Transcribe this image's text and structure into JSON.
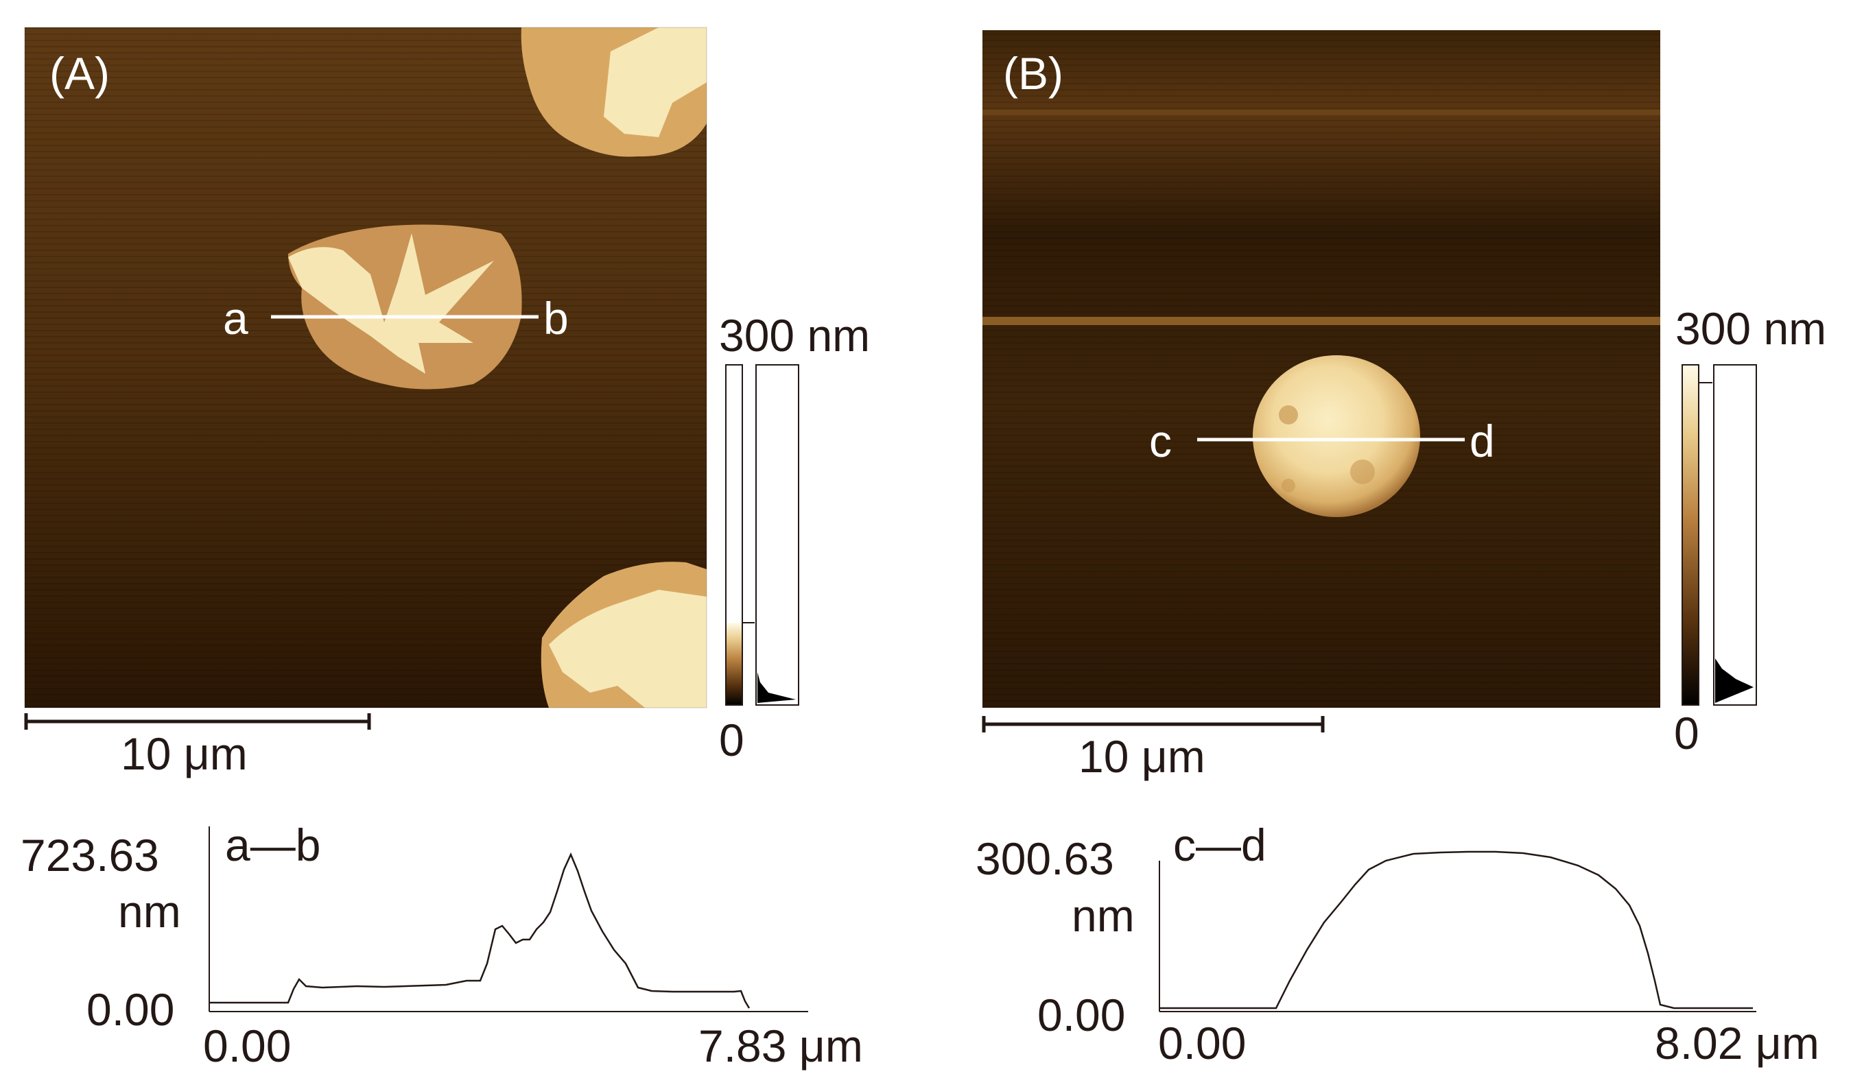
{
  "panel_a": {
    "label": "(A)",
    "line_start": "a",
    "line_end": "b",
    "scale_bar": "10 μm",
    "colorbar": {
      "max": "300 nm",
      "min": "0"
    },
    "profile": {
      "title": "a—b",
      "y_max": "723.63",
      "y_unit": "nm",
      "y_min": "0.00",
      "x_min": "0.00",
      "x_max": "7.83 μm"
    }
  },
  "panel_b": {
    "label": "(B)",
    "line_start": "c",
    "line_end": "d",
    "scale_bar": "10 μm",
    "colorbar": {
      "max": "300 nm",
      "min": "0"
    },
    "profile": {
      "title": "c—d",
      "y_max": "300.63",
      "y_unit": "nm",
      "y_min": "0.00",
      "x_min": "0.00",
      "x_max": "8.02 μm"
    }
  },
  "colors": {
    "substrate_dark": "#3a2208",
    "substrate_mid": "#5a3612",
    "feature_light": "#f7e4b0",
    "feature_mid": "#d9a560",
    "text": "#231815"
  }
}
